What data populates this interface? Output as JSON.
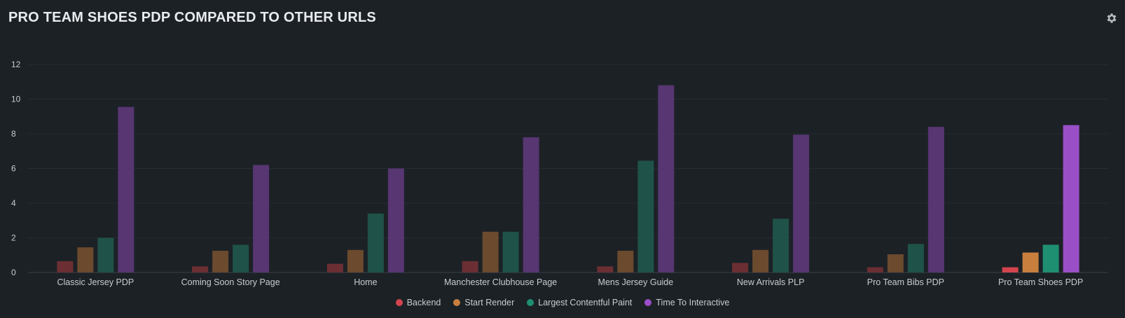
{
  "panel": {
    "title": "PRO TEAM SHOES PDP COMPARED TO OTHER URLS",
    "settings_icon": "gear-icon"
  },
  "chart_data": {
    "type": "bar",
    "title": "PRO TEAM SHOES PDP COMPARED TO OTHER URLS",
    "xlabel": "",
    "ylabel": "",
    "ylim": [
      0,
      12
    ],
    "yticks": [
      0,
      2,
      4,
      6,
      8,
      10,
      12
    ],
    "grid": true,
    "legend_position": "bottom",
    "highlight_category": "Pro Team Shoes PDP",
    "categories": [
      "Classic Jersey PDP",
      "Coming Soon Story Page",
      "Home",
      "Manchester Clubhouse Page",
      "Mens Jersey Guide",
      "New Arrivals PLP",
      "Pro Team Bibs PDP",
      "Pro Team Shoes PDP"
    ],
    "series": [
      {
        "name": "Backend",
        "color": "#d2454e",
        "dim_color": "#6b2f33",
        "values": [
          0.65,
          0.35,
          0.5,
          0.65,
          0.35,
          0.55,
          0.3,
          0.3
        ]
      },
      {
        "name": "Start Render",
        "color": "#c87f3e",
        "dim_color": "#6b4a2e",
        "values": [
          1.45,
          1.25,
          1.3,
          2.35,
          1.25,
          1.3,
          1.05,
          1.15
        ]
      },
      {
        "name": "Largest Contentful Paint",
        "color": "#1f8f72",
        "dim_color": "#1f5248",
        "values": [
          2.0,
          1.6,
          3.4,
          2.35,
          6.45,
          3.1,
          1.65,
          1.6
        ]
      },
      {
        "name": "Time To Interactive",
        "color": "#9a4fc7",
        "dim_color": "#573672",
        "values": [
          9.55,
          6.2,
          6.0,
          7.8,
          10.8,
          7.95,
          8.4,
          8.5
        ]
      }
    ]
  }
}
